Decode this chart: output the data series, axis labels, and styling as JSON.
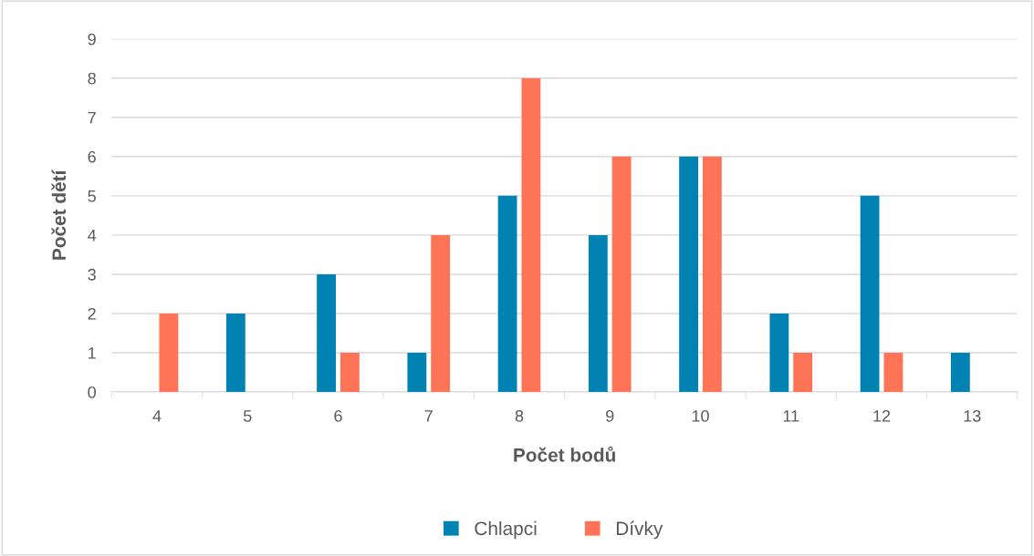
{
  "chart_data": {
    "type": "bar",
    "xlabel": "Počet bodů",
    "ylabel": "Počet dětí",
    "categories": [
      "4",
      "5",
      "6",
      "7",
      "8",
      "9",
      "10",
      "11",
      "12",
      "13"
    ],
    "series": [
      {
        "name": "Chlapci",
        "color": "#0083b3",
        "values": [
          0,
          2,
          3,
          1,
          5,
          4,
          6,
          2,
          5,
          1
        ]
      },
      {
        "name": "Dívky",
        "color": "#ff7456",
        "values": [
          2,
          0,
          1,
          4,
          8,
          6,
          6,
          1,
          1,
          0
        ]
      }
    ],
    "ylim": [
      0,
      9
    ],
    "yticks": [
      0,
      1,
      2,
      3,
      4,
      5,
      6,
      7,
      8,
      9
    ],
    "grid": "y",
    "legend": "bottom"
  }
}
